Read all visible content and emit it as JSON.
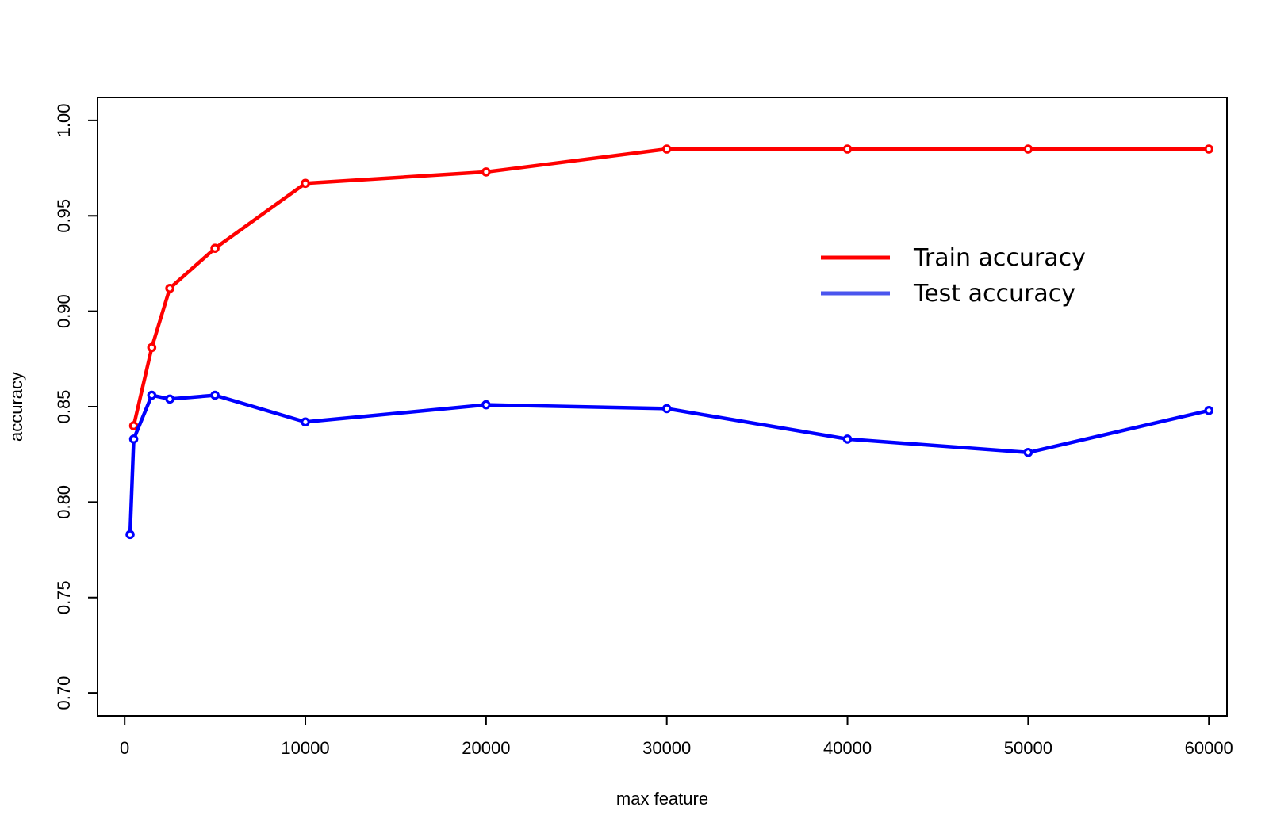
{
  "chart_data": {
    "type": "line",
    "title": "",
    "xlabel": "max feature",
    "ylabel": "accuracy",
    "xlim": [
      -1500,
      61000
    ],
    "ylim": [
      0.688,
      1.012
    ],
    "x_ticks": [
      0,
      10000,
      20000,
      30000,
      40000,
      50000,
      60000
    ],
    "x_tick_labels": [
      "0",
      "10000",
      "20000",
      "30000",
      "40000",
      "50000",
      "60000"
    ],
    "y_ticks": [
      0.7,
      0.75,
      0.8,
      0.85,
      0.9,
      0.95,
      1.0
    ],
    "y_tick_labels": [
      "0.70",
      "0.75",
      "0.80",
      "0.85",
      "0.90",
      "0.95",
      "1.00"
    ],
    "grid": false,
    "legend_position": "upper-right",
    "series": [
      {
        "name": "Train accuracy",
        "color": "#ff0000",
        "legend_color": "#ff0000",
        "x": [
          500,
          1500,
          2500,
          5000,
          10000,
          20000,
          30000,
          40000,
          50000,
          60000
        ],
        "y": [
          0.84,
          0.881,
          0.912,
          0.933,
          0.967,
          0.973,
          0.985,
          0.985,
          0.985,
          0.985
        ]
      },
      {
        "name": "Test accuracy",
        "color": "#0000ff",
        "legend_color": "#4a55ee",
        "x": [
          300,
          500,
          1500,
          2500,
          5000,
          10000,
          20000,
          30000,
          40000,
          50000,
          60000
        ],
        "y": [
          0.783,
          0.833,
          0.856,
          0.854,
          0.856,
          0.842,
          0.851,
          0.849,
          0.833,
          0.826,
          0.848
        ]
      }
    ]
  }
}
